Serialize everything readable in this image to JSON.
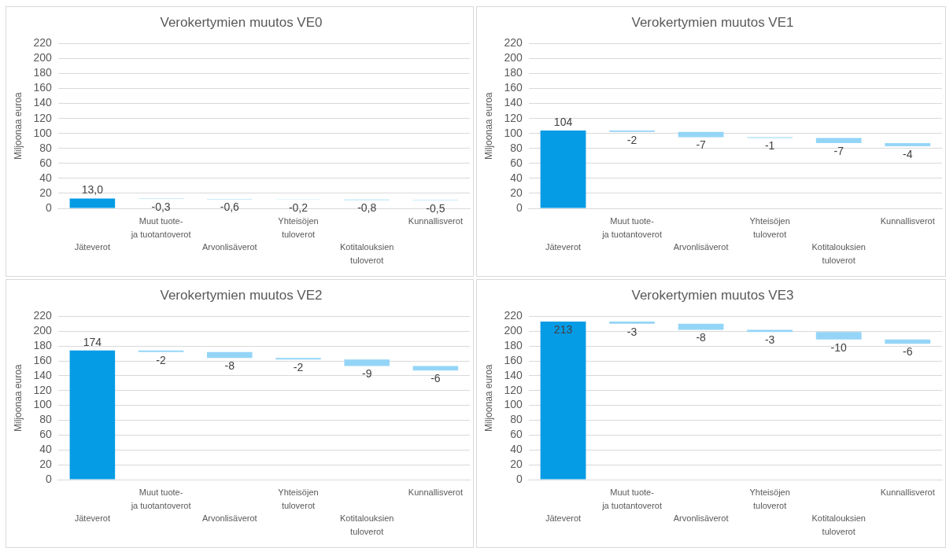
{
  "chart_data": [
    {
      "type": "bar",
      "title": "Verokertymien muutos VE0",
      "ylabel": "Miljoonaa euroa",
      "categories": [
        "Jäteverot",
        "Muut tuote-\nja tuotantoverot",
        "Arvonlisäverot",
        "Yhteisöjen\ntuloverot",
        "Kotitalouksien\ntuloverot",
        "Kunnallisverot"
      ],
      "values": [
        13.0,
        -0.3,
        -0.6,
        -0.2,
        -0.8,
        -0.5
      ],
      "base": [
        0,
        13.0,
        12.7,
        12.1,
        11.9,
        11.1
      ],
      "colors": [
        "#069be5",
        "#94d5f7",
        "#94d5f7",
        "#94d5f7",
        "#94d5f7",
        "#94d5f7"
      ],
      "value_labels": [
        "13,0",
        "-0,3",
        "-0,6",
        "-0,2",
        "-0,8",
        "-0,5"
      ],
      "ylim": [
        0,
        220
      ],
      "yticks": [
        0,
        20,
        40,
        60,
        80,
        100,
        120,
        140,
        160,
        180,
        200,
        220
      ],
      "grid": "y"
    },
    {
      "type": "bar",
      "title": "Verokertymien muutos VE1",
      "ylabel": "Miljoonaa euroa",
      "categories": [
        "Jäteverot",
        "Muut tuote-\nja tuotantoverot",
        "Arvonlisäverot",
        "Yhteisöjen\ntuloverot",
        "Kotitalouksien\ntuloverot",
        "Kunnallisverot"
      ],
      "values": [
        104,
        -2,
        -7,
        -1,
        -7,
        -4
      ],
      "base": [
        0,
        104,
        102,
        95,
        94,
        87
      ],
      "colors": [
        "#069be5",
        "#94d5f7",
        "#94d5f7",
        "#94d5f7",
        "#94d5f7",
        "#94d5f7"
      ],
      "value_labels": [
        "104",
        "-2",
        "-7",
        "-1",
        "-7",
        "-4"
      ],
      "ylim": [
        0,
        220
      ],
      "yticks": [
        0,
        20,
        40,
        60,
        80,
        100,
        120,
        140,
        160,
        180,
        200,
        220
      ],
      "grid": "y"
    },
    {
      "type": "bar",
      "title": "Verokertymien muutos VE2",
      "ylabel": "Miljoonaa euroa",
      "categories": [
        "Jäteverot",
        "Muut tuote-\nja tuotantoverot",
        "Arvonlisäverot",
        "Yhteisöjen\ntuloverot",
        "Kotitalouksien\ntuloverot",
        "Kunnallisverot"
      ],
      "values": [
        174,
        -2,
        -8,
        -2,
        -9,
        -6
      ],
      "base": [
        0,
        174,
        172,
        164,
        162,
        153
      ],
      "colors": [
        "#069be5",
        "#94d5f7",
        "#94d5f7",
        "#94d5f7",
        "#94d5f7",
        "#94d5f7"
      ],
      "value_labels": [
        "174",
        "-2",
        "-8",
        "-2",
        "-9",
        "-6"
      ],
      "ylim": [
        0,
        220
      ],
      "yticks": [
        0,
        20,
        40,
        60,
        80,
        100,
        120,
        140,
        160,
        180,
        200,
        220
      ],
      "grid": "y"
    },
    {
      "type": "bar",
      "title": "Verokertymien muutos VE3",
      "ylabel": "Miljoonaa euroa",
      "categories": [
        "Jäteverot",
        "Muut tuote-\nja tuotantoverot",
        "Arvonlisäverot",
        "Yhteisöjen\ntuloverot",
        "Kotitalouksien\ntuloverot",
        "Kunnallisverot"
      ],
      "values": [
        213,
        -3,
        -8,
        -3,
        -10,
        -6
      ],
      "base": [
        0,
        213,
        210,
        202,
        199,
        189
      ],
      "colors": [
        "#069be5",
        "#94d5f7",
        "#94d5f7",
        "#94d5f7",
        "#94d5f7",
        "#94d5f7"
      ],
      "value_labels": [
        "213",
        "-3",
        "-8",
        "-3",
        "-10",
        "-6"
      ],
      "ylim": [
        0,
        220
      ],
      "yticks": [
        0,
        20,
        40,
        60,
        80,
        100,
        120,
        140,
        160,
        180,
        200,
        220
      ],
      "grid": "y"
    }
  ]
}
